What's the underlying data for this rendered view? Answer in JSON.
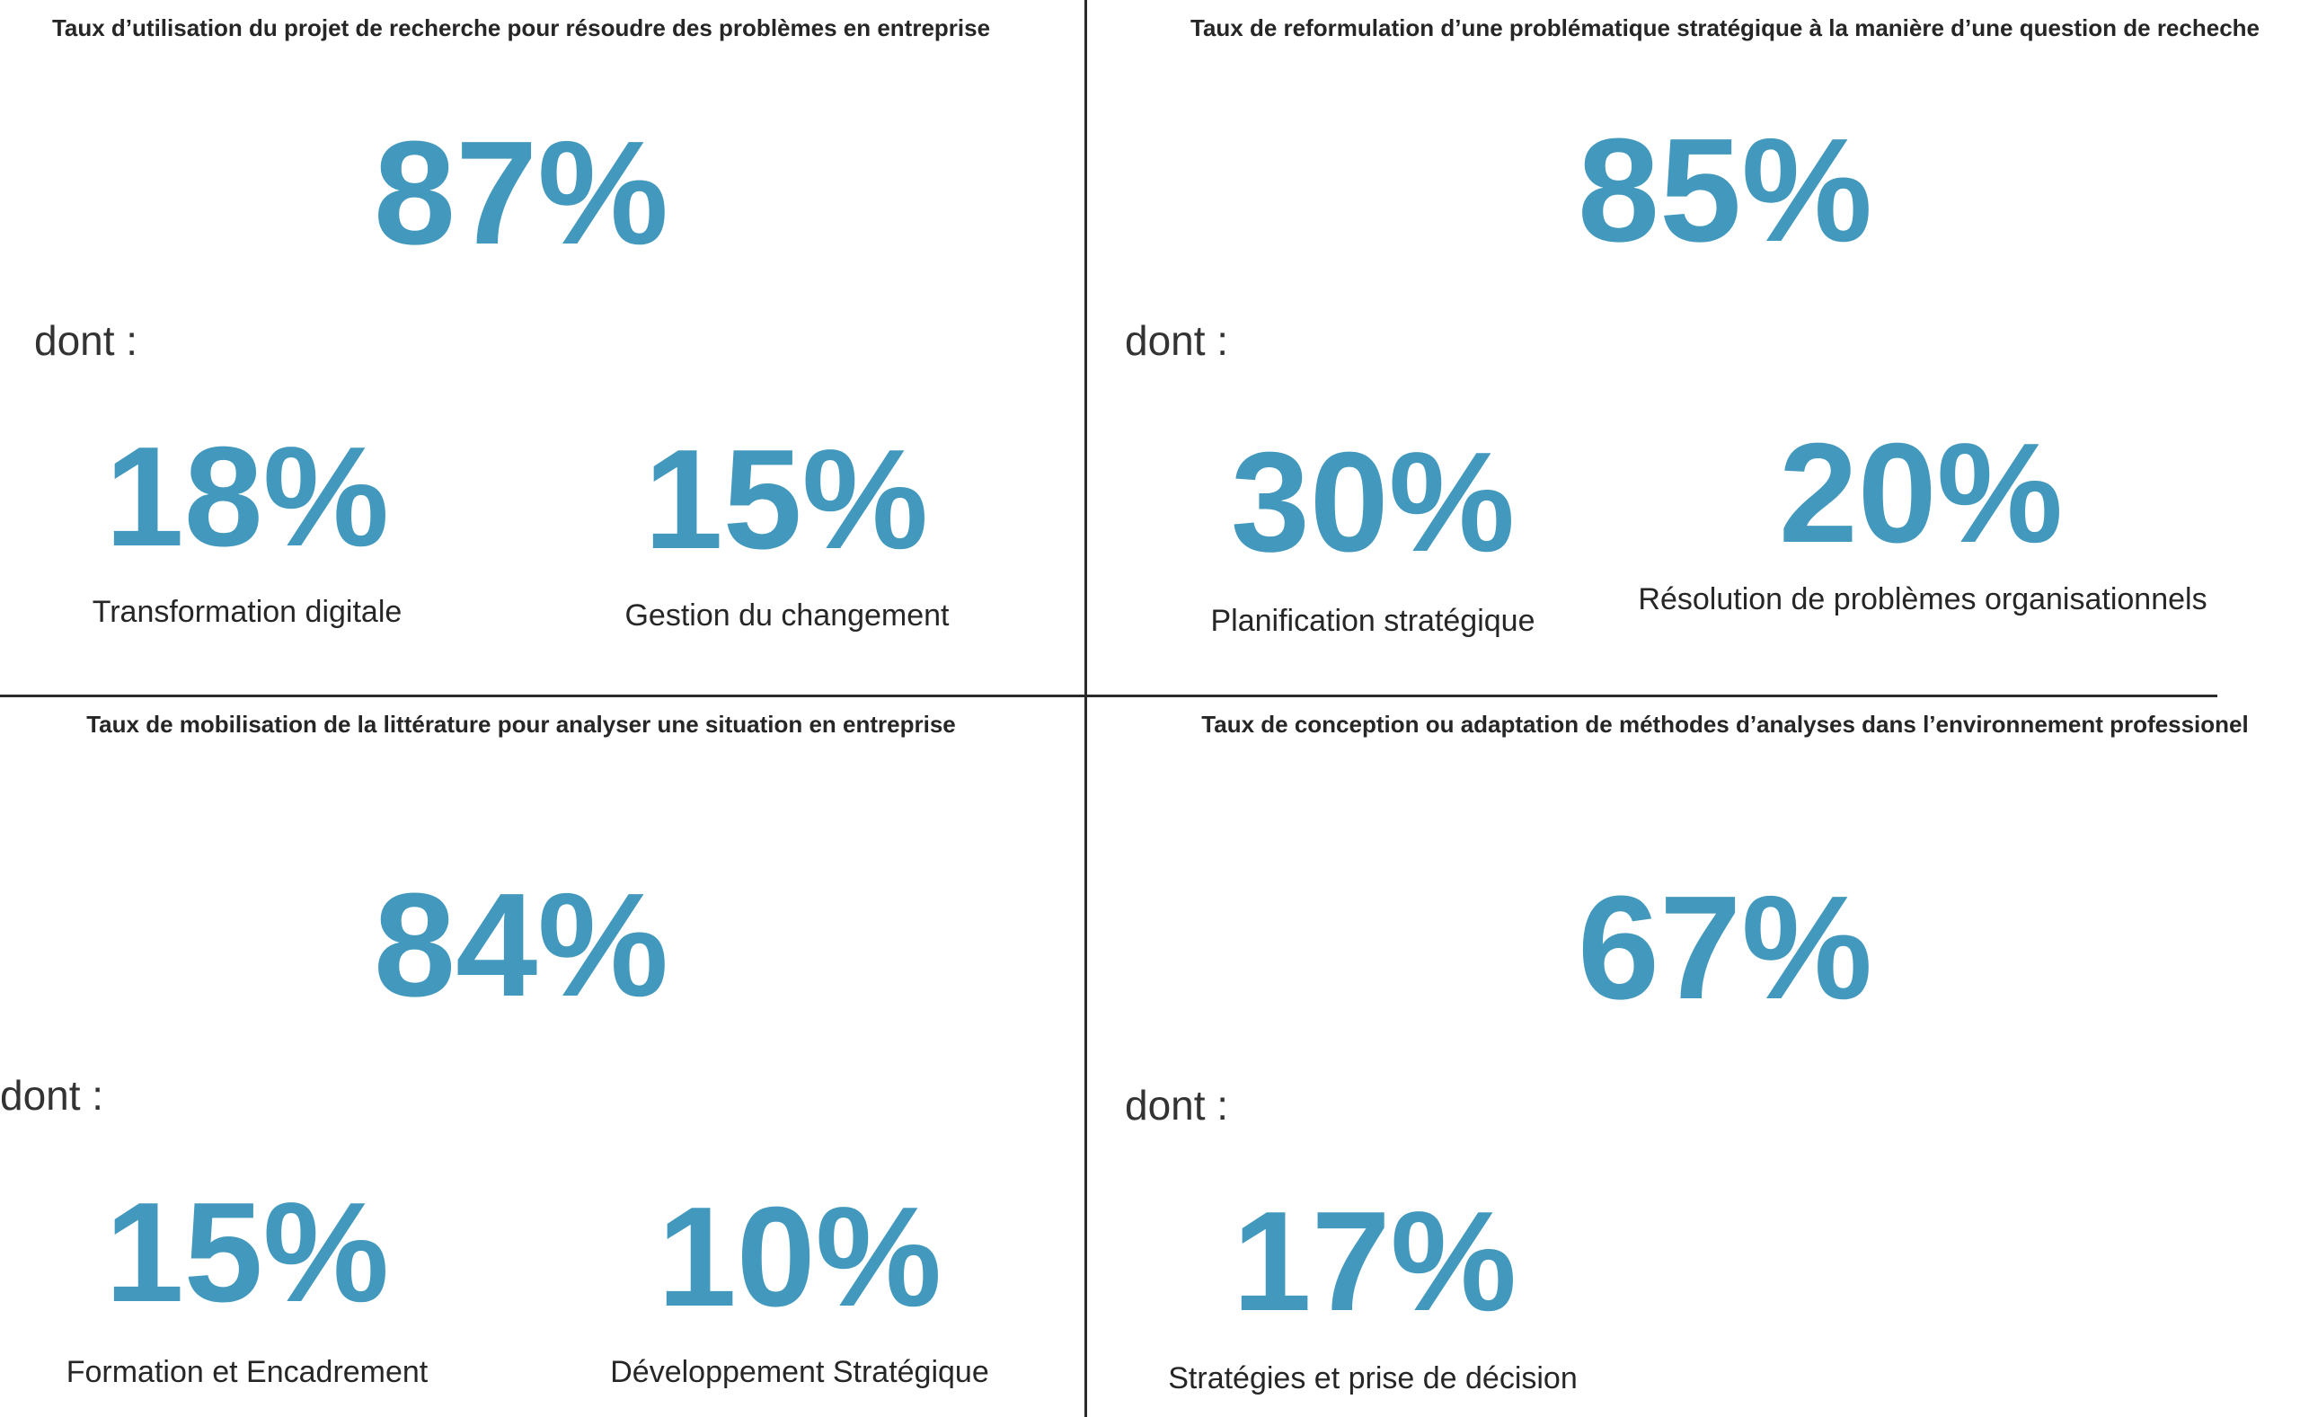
{
  "dont_label": "dont :",
  "quadrants": [
    {
      "title": "Taux d’utilisation du projet de recherche pour résoudre des problèmes en entreprise",
      "rate": "87%",
      "items": [
        {
          "value": "18%",
          "label": "Transformation digitale"
        },
        {
          "value": "15%",
          "label": "Gestion du changement"
        }
      ]
    },
    {
      "title": "Taux de reformulation d’une problématique stratégique à la manière d’une question de recheche",
      "rate": "85%",
      "items": [
        {
          "value": "30%",
          "label": "Planification stratégique"
        },
        {
          "value": "20%",
          "label": "Résolution de problèmes organisationnels"
        }
      ]
    },
    {
      "title": "Taux de mobilisation de la littérature pour analyser une situation en entreprise",
      "rate": "84%",
      "items": [
        {
          "value": "15%",
          "label": "Formation et Encadrement"
        },
        {
          "value": "10%",
          "label": "Développement Stratégique"
        }
      ]
    },
    {
      "title": "Taux de conception ou adaptation de méthodes d’analyses dans l’environnement professionel",
      "rate": "67%",
      "items": [
        {
          "value": "17%",
          "label": "Stratégies et prise de décision"
        }
      ]
    }
  ]
}
